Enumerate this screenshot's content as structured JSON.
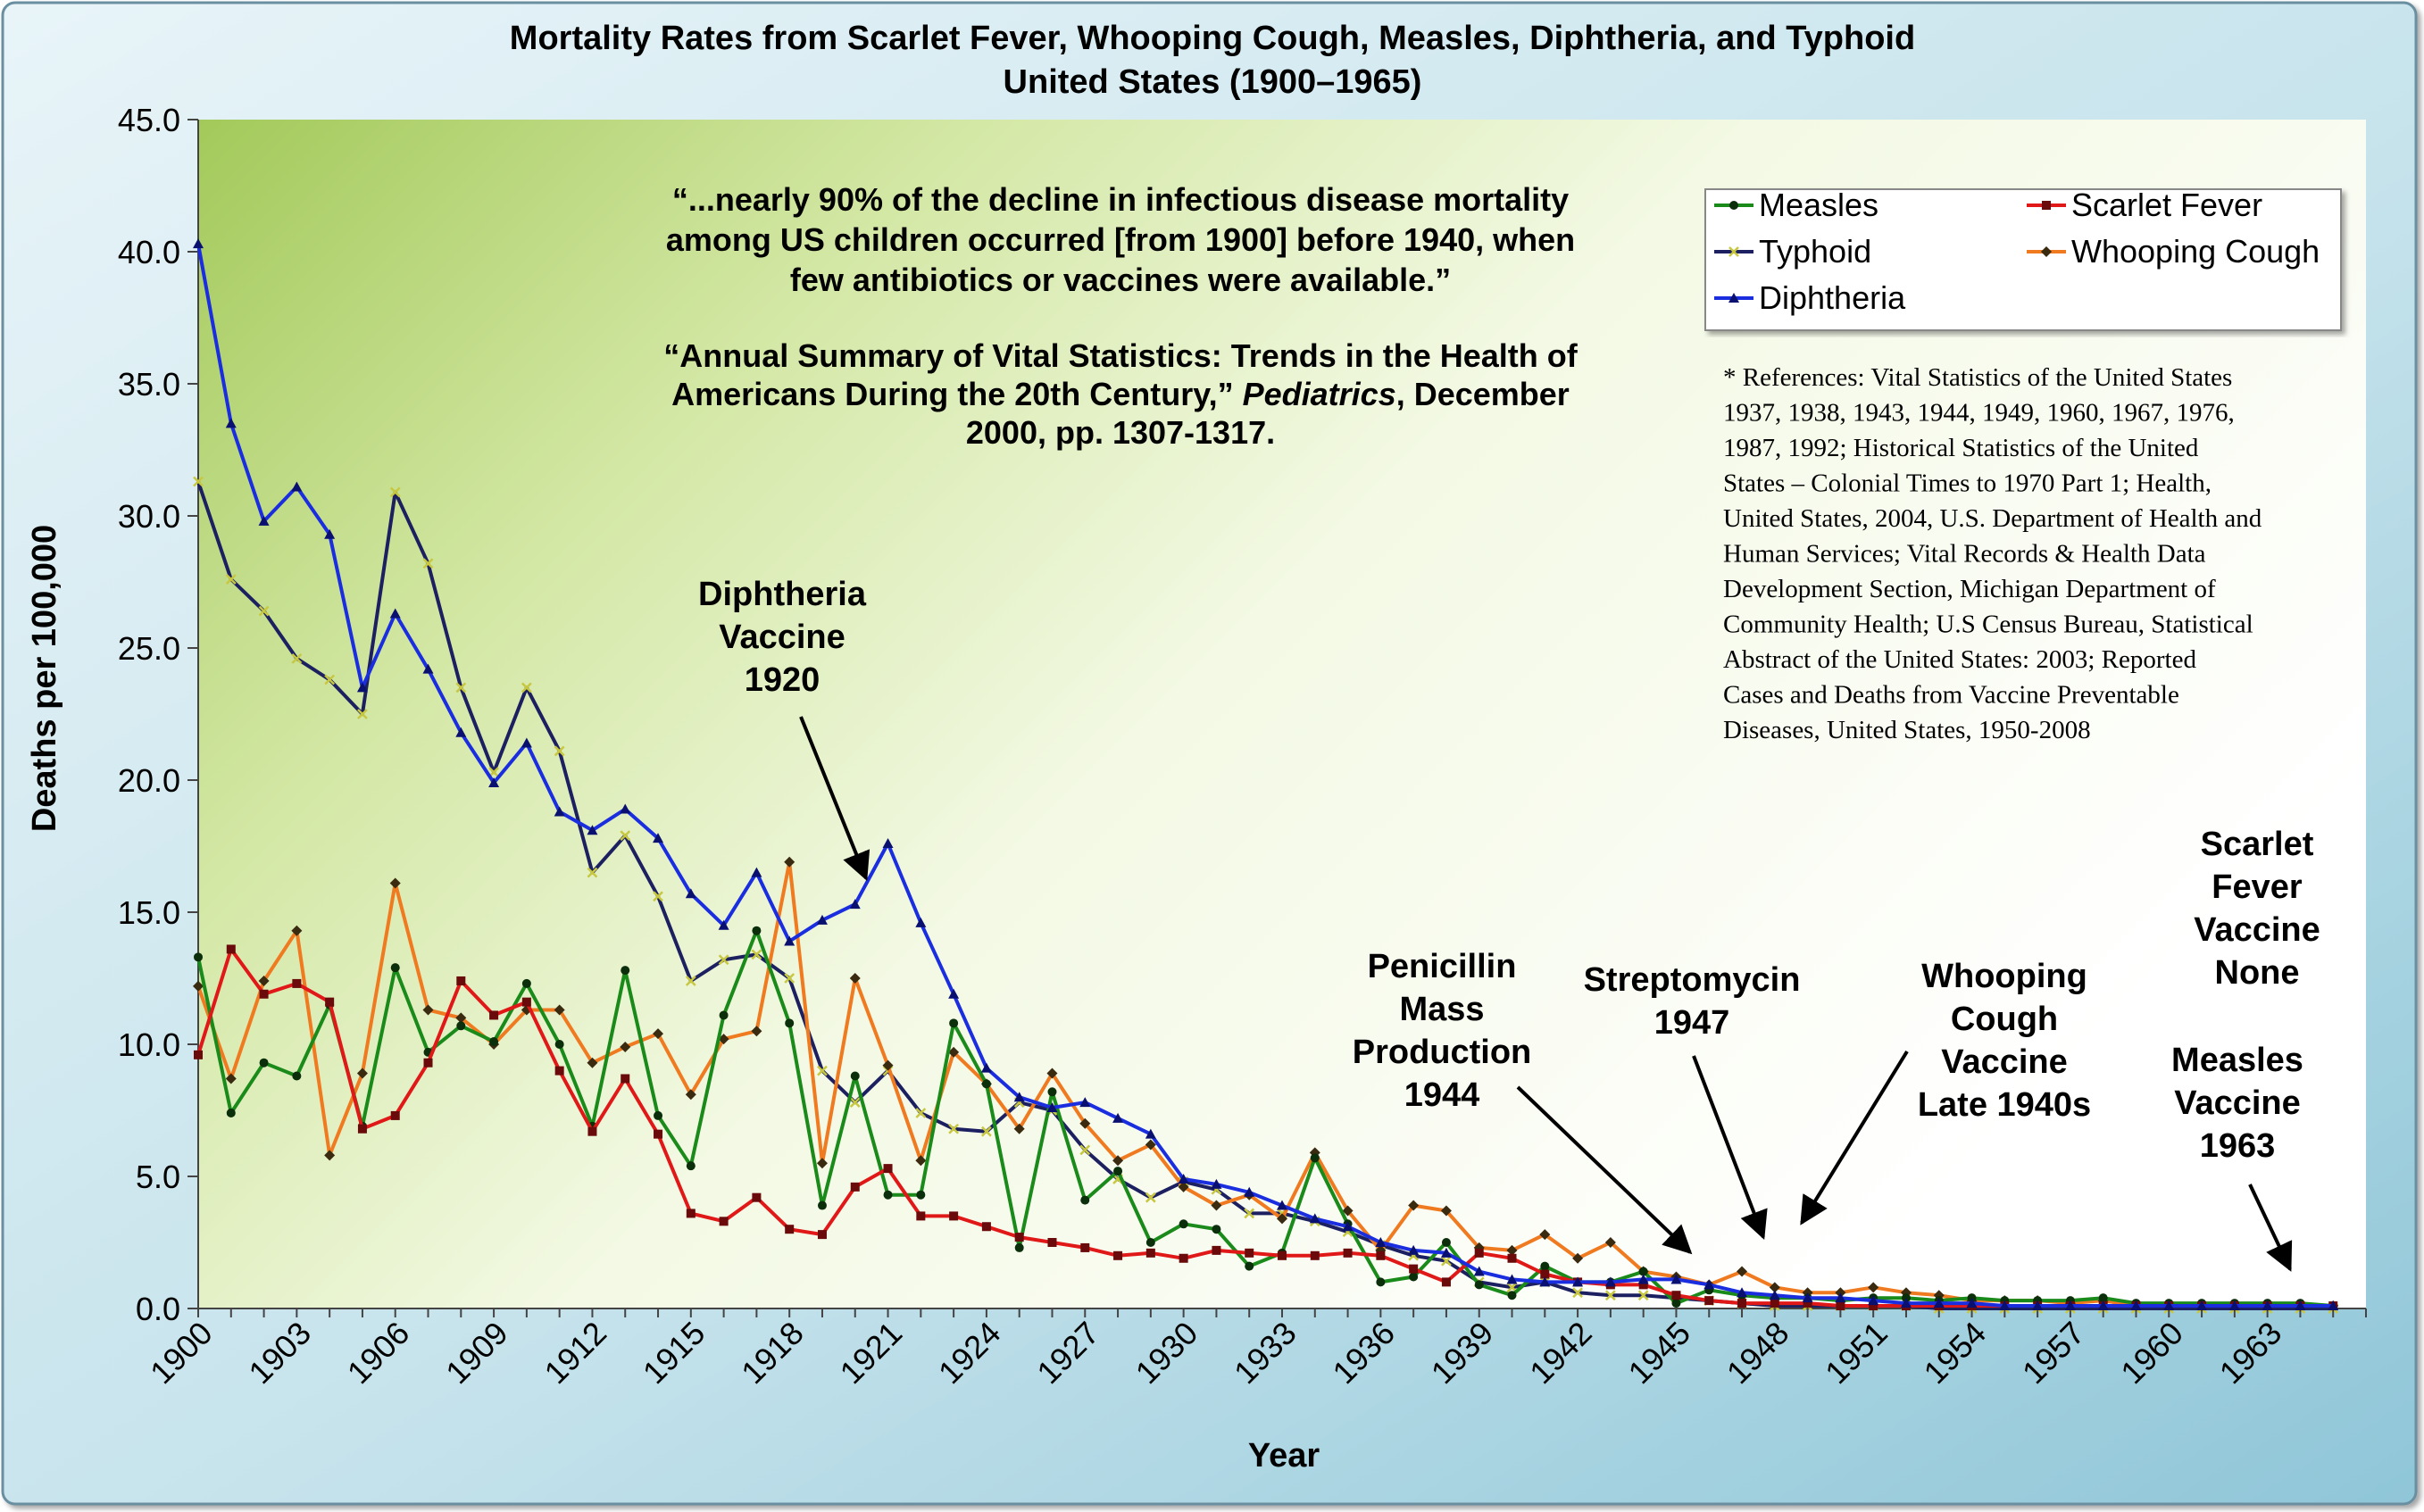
{
  "chart_data": {
    "type": "line",
    "title": "Mortality Rates from Scarlet Fever, Whooping Cough, Measles, Diphtheria, and Typhoid",
    "subtitle": "United States (1900–1965)",
    "xlabel": "Year",
    "ylabel": "Deaths per 100,000",
    "ylim": [
      0,
      45
    ],
    "yticks": [
      "0.0",
      "5.0",
      "10.0",
      "15.0",
      "20.0",
      "25.0",
      "30.0",
      "35.0",
      "40.0",
      "45.0"
    ],
    "xticks": [
      "1900",
      "1903",
      "1906",
      "1909",
      "1912",
      "1915",
      "1918",
      "1921",
      "1924",
      "1927",
      "1930",
      "1933",
      "1936",
      "1939",
      "1942",
      "1945",
      "1948",
      "1951",
      "1954",
      "1957",
      "1960",
      "1963"
    ],
    "x_start": 1900,
    "x_end": 1966,
    "grid": false,
    "legend_position": "top-right",
    "series": [
      {
        "name": "Measles",
        "color": "#1a8a1a",
        "values": [
          13.3,
          7.4,
          9.3,
          8.8,
          11.5,
          6.9,
          12.9,
          9.7,
          10.7,
          10.1,
          12.3,
          10.0,
          6.9,
          12.8,
          7.3,
          5.4,
          11.1,
          14.3,
          10.8,
          3.9,
          8.8,
          4.3,
          4.3,
          10.8,
          8.5,
          2.3,
          8.2,
          4.1,
          5.2,
          2.5,
          3.2,
          3.0,
          1.6,
          2.1,
          5.7,
          3.2,
          1.0,
          1.2,
          2.5,
          0.9,
          0.5,
          1.6,
          1.0,
          1.0,
          1.4,
          0.2,
          0.7,
          0.5,
          0.4,
          0.4,
          0.3,
          0.4,
          0.4,
          0.3,
          0.4,
          0.3,
          0.3,
          0.3,
          0.4,
          0.2,
          0.2,
          0.2,
          0.2,
          0.2,
          0.2,
          0.1
        ]
      },
      {
        "name": "Scarlet Fever",
        "color": "#e01818",
        "values": [
          9.6,
          13.6,
          11.9,
          12.3,
          11.6,
          6.8,
          7.3,
          9.3,
          12.4,
          11.1,
          11.6,
          9.0,
          6.7,
          8.7,
          6.6,
          3.6,
          3.3,
          4.2,
          3.0,
          2.8,
          4.6,
          5.3,
          3.5,
          3.5,
          3.1,
          2.7,
          2.5,
          2.3,
          2.0,
          2.1,
          1.9,
          2.2,
          2.1,
          2.0,
          2.0,
          2.1,
          2.0,
          1.5,
          1.0,
          2.1,
          1.9,
          1.3,
          1.0,
          0.9,
          0.9,
          0.5,
          0.3,
          0.2,
          0.2,
          0.2,
          0.1,
          0.1,
          0.1,
          0.1,
          0.1,
          0.1,
          0.1,
          0.1,
          0.1,
          0.1,
          0.1,
          0.1,
          0.1,
          0.1,
          0.1,
          0.1
        ]
      },
      {
        "name": "Typhoid",
        "color": "#8f9840",
        "values": [
          31.3,
          27.6,
          26.4,
          24.6,
          23.8,
          22.5,
          30.9,
          28.2,
          23.5,
          20.3,
          23.5,
          21.1,
          16.5,
          17.9,
          15.6,
          12.4,
          13.2,
          13.4,
          12.5,
          9.0,
          7.8,
          9.0,
          7.4,
          6.8,
          6.7,
          7.8,
          7.5,
          6.0,
          4.9,
          4.2,
          4.8,
          4.5,
          3.6,
          3.6,
          3.3,
          2.9,
          2.4,
          2.0,
          1.8,
          1.0,
          0.8,
          1.0,
          0.6,
          0.5,
          0.5,
          0.4,
          0.3,
          0.2,
          0.1,
          0.1,
          0.1,
          0.1,
          0.1,
          0.0,
          0.0,
          0.0,
          0.0,
          0.0,
          0.0,
          0.0,
          0.0,
          0.0,
          0.0,
          0.0,
          0.0,
          0.0
        ]
      },
      {
        "name": "Whooping Cough",
        "color": "#f07a20",
        "values": [
          12.2,
          8.7,
          12.4,
          14.3,
          5.8,
          8.9,
          16.1,
          11.3,
          11.0,
          10.0,
          11.3,
          11.3,
          9.3,
          9.9,
          10.4,
          8.1,
          10.2,
          10.5,
          16.9,
          5.5,
          12.5,
          9.2,
          5.6,
          9.7,
          8.5,
          6.8,
          8.9,
          7.0,
          5.6,
          6.2,
          4.6,
          3.9,
          4.3,
          3.4,
          5.9,
          3.7,
          2.2,
          3.9,
          3.7,
          2.3,
          2.2,
          2.8,
          1.9,
          2.5,
          1.4,
          1.2,
          0.9,
          1.4,
          0.8,
          0.6,
          0.6,
          0.8,
          0.6,
          0.5,
          0.3,
          0.3,
          0.3,
          0.2,
          0.3,
          0.1,
          0.1,
          0.1,
          0.1,
          0.1,
          0.1,
          0.1
        ]
      },
      {
        "name": "Diphtheria",
        "color": "#1a2ee0",
        "values": [
          40.3,
          33.5,
          29.8,
          31.1,
          29.3,
          23.5,
          26.3,
          24.2,
          21.8,
          19.9,
          21.4,
          18.8,
          18.1,
          18.9,
          17.8,
          15.7,
          14.5,
          16.5,
          13.9,
          14.7,
          15.3,
          17.6,
          14.6,
          11.9,
          9.1,
          8.0,
          7.6,
          7.8,
          7.2,
          6.6,
          4.9,
          4.7,
          4.4,
          3.9,
          3.4,
          3.1,
          2.5,
          2.2,
          2.1,
          1.4,
          1.1,
          1.0,
          1.0,
          1.0,
          1.1,
          1.1,
          0.9,
          0.6,
          0.5,
          0.4,
          0.4,
          0.3,
          0.2,
          0.2,
          0.2,
          0.1,
          0.1,
          0.1,
          0.1,
          0.1,
          0.1,
          0.1,
          0.1,
          0.1,
          0.1,
          0.1
        ]
      }
    ],
    "quote": {
      "lines": [
        "“...nearly 90% of the decline in infectious disease mortality",
        "among US children occurred [from 1900] before 1940, when",
        "few antibiotics or vaccines were available.”"
      ],
      "cite_line1": "“Annual Summary of Vital Statistics: Trends in the Health of",
      "cite_line2_pre": "Americans During the 20th Century,” ",
      "cite_line2_italic": "Pediatrics",
      "cite_line2_post": ", December",
      "cite_line3": "2000, pp. 1307-1317."
    },
    "references": [
      "* References: Vital Statistics of the United States",
      "1937, 1938, 1943, 1944, 1949, 1960, 1967, 1976,",
      "1987, 1992; Historical Statistics of the United",
      "States – Colonial Times to 1970 Part 1; Health,",
      "United States, 2004, U.S. Department of Health and",
      "Human Services; Vital Records & Health Data",
      "Development Section, Michigan Department of",
      "Community Health; U.S Census Bureau, Statistical",
      "Abstract of the United States: 2003; Reported",
      "Cases and Deaths from Vaccine Preventable",
      "Diseases, United States, 1950-2008"
    ],
    "annotations": [
      {
        "id": "diphtheria-vaccine",
        "lines": [
          "Diphtheria",
          "Vaccine",
          "1920"
        ]
      },
      {
        "id": "penicillin",
        "lines": [
          "Penicillin",
          "Mass",
          "Production",
          "1944"
        ]
      },
      {
        "id": "streptomycin",
        "lines": [
          "Streptomycin",
          "1947"
        ]
      },
      {
        "id": "whooping-cough-vaccine",
        "lines": [
          "Whooping",
          "Cough",
          "Vaccine",
          "Late 1940s"
        ]
      },
      {
        "id": "scarlet-fever-vaccine",
        "lines": [
          "Scarlet",
          "Fever",
          "Vaccine",
          "None"
        ]
      },
      {
        "id": "measles-vaccine",
        "lines": [
          "Measles",
          "Vaccine",
          "1963"
        ]
      }
    ]
  }
}
